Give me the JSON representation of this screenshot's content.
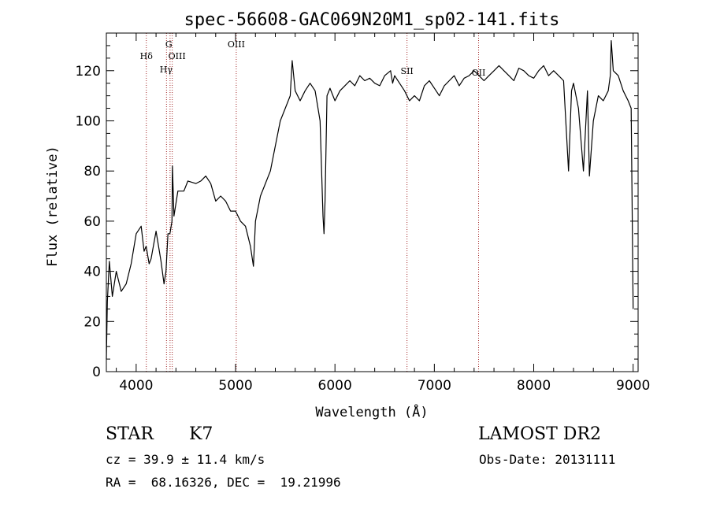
{
  "chart_data": {
    "type": "line",
    "title": "spec-56608-GAC069N20M1_sp02-141.fits",
    "xlabel": "Wavelength (Å)",
    "ylabel": "Flux (relative)",
    "xlim": [
      3700,
      9050
    ],
    "ylim": [
      0,
      135
    ],
    "xticks": [
      4000,
      5000,
      6000,
      7000,
      8000,
      9000
    ],
    "yticks": [
      0,
      20,
      40,
      60,
      80,
      100,
      120
    ],
    "grid": false,
    "line_color": "#000000",
    "marker_color": "#a52a2a",
    "spectral_lines": [
      {
        "label": "Hδ",
        "x": 4102
      },
      {
        "label": "G",
        "x": 4305
      },
      {
        "label": "OIII",
        "x": 4363
      },
      {
        "label": "Hγ",
        "x": 4341
      },
      {
        "label": "OIII",
        "x": 5007
      },
      {
        "label": "SII",
        "x": 6725
      },
      {
        "label": "OII",
        "x": 7445
      }
    ],
    "series": [
      {
        "x": [
          3700,
          3710,
          3730,
          3760,
          3800,
          3850,
          3900,
          3950,
          4000,
          4050,
          4080,
          4100,
          4130,
          4150,
          4200,
          4250,
          4280,
          4300,
          4320,
          4340,
          4360,
          4365,
          4380,
          4420,
          4480,
          4520,
          4600,
          4650,
          4700,
          4750,
          4800,
          4850,
          4900,
          4950,
          5000,
          5050,
          5100,
          5150,
          5180,
          5200,
          5250,
          5300,
          5350,
          5400,
          5450,
          5500,
          5550,
          5570,
          5600,
          5650,
          5700,
          5750,
          5800,
          5850,
          5880,
          5890,
          5900,
          5920,
          5950,
          6000,
          6050,
          6100,
          6150,
          6200,
          6250,
          6300,
          6350,
          6400,
          6450,
          6500,
          6560,
          6580,
          6600,
          6650,
          6700,
          6750,
          6800,
          6850,
          6900,
          6950,
          7000,
          7050,
          7100,
          7150,
          7200,
          7250,
          7300,
          7350,
          7400,
          7450,
          7500,
          7550,
          7600,
          7650,
          7700,
          7750,
          7800,
          7850,
          7900,
          7950,
          8000,
          8050,
          8100,
          8150,
          8200,
          8250,
          8300,
          8350,
          8380,
          8400,
          8450,
          8500,
          8540,
          8560,
          8600,
          8650,
          8700,
          8750,
          8770,
          8780,
          8800,
          8850,
          8900,
          8950,
          8980,
          9000
        ],
        "y": [
          5,
          28,
          44,
          30,
          40,
          32,
          35,
          43,
          55,
          58,
          48,
          50,
          43,
          45,
          56,
          44,
          35,
          40,
          55,
          55,
          60,
          82,
          62,
          72,
          72,
          76,
          75,
          76,
          78,
          75,
          68,
          70,
          68,
          64,
          64,
          60,
          58,
          50,
          42,
          60,
          70,
          75,
          80,
          90,
          100,
          105,
          110,
          124,
          112,
          108,
          112,
          115,
          112,
          100,
          62,
          55,
          68,
          110,
          113,
          108,
          112,
          114,
          116,
          114,
          118,
          116,
          117,
          115,
          114,
          118,
          120,
          115,
          118,
          115,
          112,
          108,
          110,
          108,
          114,
          116,
          113,
          110,
          114,
          116,
          118,
          114,
          117,
          118,
          120,
          118,
          116,
          118,
          120,
          122,
          120,
          118,
          116,
          121,
          120,
          118,
          117,
          120,
          122,
          118,
          120,
          118,
          116,
          80,
          112,
          115,
          105,
          80,
          112,
          78,
          100,
          110,
          108,
          112,
          118,
          132,
          120,
          118,
          112,
          108,
          105,
          25
        ]
      }
    ]
  },
  "info": {
    "object_class": "STAR",
    "subclass": "K7",
    "cz": "cz = 39.9 ± 11.4 km/s",
    "coords": "RA =  68.16326, DEC =  19.21996",
    "survey": "LAMOST DR2",
    "obs_date": "Obs-Date: 20131111"
  }
}
